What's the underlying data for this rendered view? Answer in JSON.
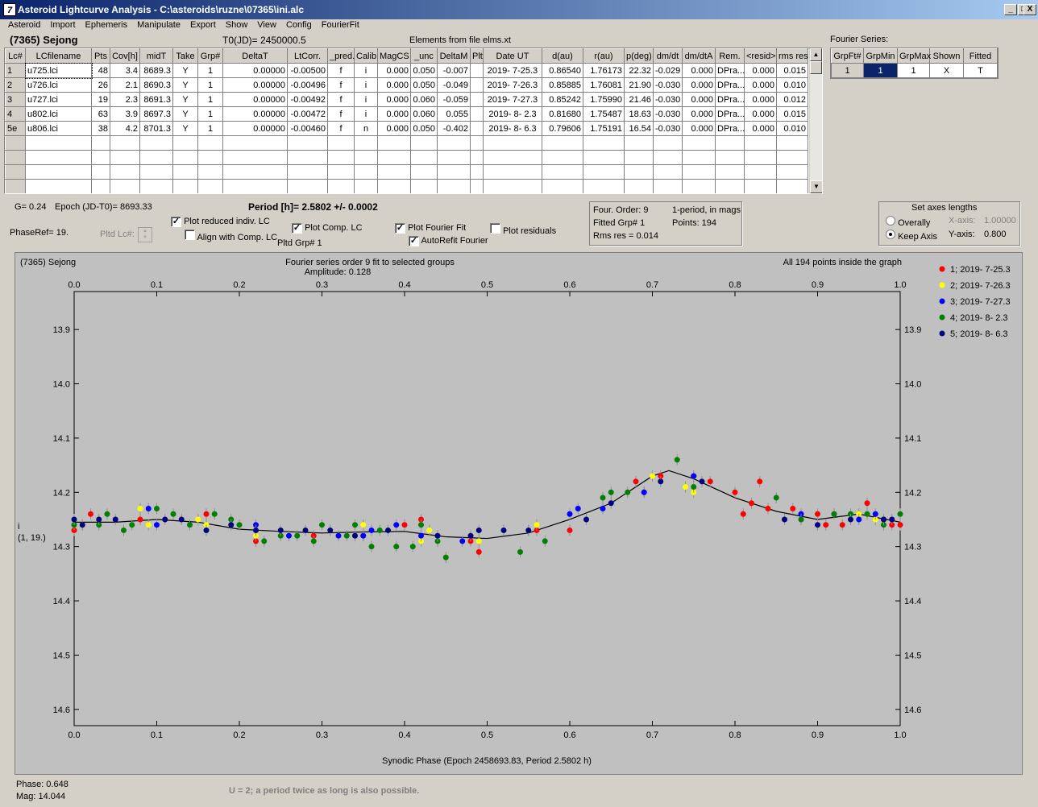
{
  "window": {
    "title": "Asteroid Lightcurve Analysis - C:\\asteroids\\ruzne\\07365\\ini.alc",
    "icon_text": "7",
    "min_glyph": "_",
    "max_glyph": "□",
    "close_glyph": "X"
  },
  "menu": [
    "Asteroid",
    "Import",
    "Ephemeris",
    "Manipulate",
    "Export",
    "Show",
    "View",
    "Config",
    "FourierFit"
  ],
  "header": {
    "asteroid_name": "(7365) Sejong",
    "t0": "T0(JD)= 2450000.5",
    "elements": "Elements from file elms.xt"
  },
  "lc_table": {
    "columns": [
      "Lc#",
      "LCfilename",
      "Pts",
      "Cov[h]",
      "midT",
      "Take",
      "Grp#",
      "DeltaT",
      "LtCorr.",
      "_pred.",
      "Calib",
      "MagCS",
      "_unc",
      "DeltaM",
      "Plt",
      "Date UT",
      "d(au)",
      "r(au)",
      "p(deg)",
      "dm/dt",
      "dm/dtA",
      "Rem.",
      "<resid>",
      "rms res"
    ],
    "rows": [
      [
        "1",
        "u725.lci",
        "48",
        "3.4",
        "8689.3",
        "Y",
        "1",
        "0.00000",
        "-0.00500",
        "f",
        "i",
        "0.000",
        "0.050",
        "-0.007",
        "",
        "2019- 7-25.3",
        "0.86540",
        "1.76173",
        "22.32",
        "-0.029",
        "0.000",
        "DPra...",
        "0.000",
        "0.015"
      ],
      [
        "2",
        "u726.lci",
        "26",
        "2.1",
        "8690.3",
        "Y",
        "1",
        "0.00000",
        "-0.00496",
        "f",
        "i",
        "0.000",
        "0.050",
        "-0.049",
        "",
        "2019- 7-26.3",
        "0.85885",
        "1.76081",
        "21.90",
        "-0.030",
        "0.000",
        "DPra...",
        "0.000",
        "0.010"
      ],
      [
        "3",
        "u727.lci",
        "19",
        "2.3",
        "8691.3",
        "Y",
        "1",
        "0.00000",
        "-0.00492",
        "f",
        "i",
        "0.000",
        "0.060",
        "-0.059",
        "",
        "2019- 7-27.3",
        "0.85242",
        "1.75990",
        "21.46",
        "-0.030",
        "0.000",
        "DPra...",
        "0.000",
        "0.012"
      ],
      [
        "4",
        "u802.lci",
        "63",
        "3.9",
        "8697.3",
        "Y",
        "1",
        "0.00000",
        "-0.00472",
        "f",
        "i",
        "0.000",
        "0.060",
        "0.055",
        "",
        "2019- 8- 2.3",
        "0.81680",
        "1.75487",
        "18.63",
        "-0.030",
        "0.000",
        "DPra...",
        "0.000",
        "0.015"
      ],
      [
        "5e",
        "u806.lci",
        "38",
        "4.2",
        "8701.3",
        "Y",
        "1",
        "0.00000",
        "-0.00460",
        "f",
        "n",
        "0.000",
        "0.050",
        "-0.402",
        "",
        "2019- 8- 6.3",
        "0.79606",
        "1.75191",
        "16.54",
        "-0.030",
        "0.000",
        "DPra...",
        "0.000",
        "0.010"
      ]
    ],
    "empty_rows": 4
  },
  "fourier_series": {
    "label": "Fourier Series:",
    "columns": [
      "GrpFt#",
      "GrpMin",
      "GrpMax",
      "Shown",
      "Fitted"
    ],
    "row": [
      "1",
      "1",
      "1",
      "X",
      "T"
    ]
  },
  "controls": {
    "g_value": "G= 0.24",
    "epoch": "Epoch (JD-T0)= 8693.33",
    "period": "Period [h]= 2.5802 +/- 0.0002",
    "phaseref": "PhaseRef= 19.",
    "pltd_lc": "Pltd Lc#:",
    "plot_reduced": "Plot reduced indiv. LC",
    "align_comp": "Align with Comp. LC",
    "plot_comp": "Plot Comp. LC",
    "pltd_grp": "Pltd Grp#  1",
    "plot_fourier": "Plot Fourier Fit",
    "autorefit": "AutoRefit Fourier",
    "plot_residuals": "Plot residuals",
    "check_glyph": "✓"
  },
  "fit_info": {
    "order": "Four. Order:  9",
    "one_period": "1-period, in mags",
    "fitted_grp": "Fitted Grp# 1",
    "points": "Points: 194",
    "rms": "Rms res      = 0.014"
  },
  "axes_box": {
    "title": "Set axes lengths",
    "overally": "Overally",
    "keep_axis": "Keep Axis",
    "x_label": "X-axis:",
    "x_value": "1.00000",
    "y_label": "Y-axis:",
    "y_value": "0.800"
  },
  "status": {
    "phase": "Phase:  0.648",
    "mag": "Mag:    14.044",
    "note": "U = 2; a period twice as long is also possible."
  },
  "chart_data": {
    "type": "scatter",
    "title_left": "(7365) Sejong",
    "title_center": "Fourier series order 9 fit to selected groups",
    "subtitle": "Amplitude: 0.128",
    "title_right": "All 194 points inside the graph",
    "xlabel": "Synodic Phase (Epoch 2458693.83, Period 2.5802 h)",
    "ylabel": "i",
    "ylabel2": "(1, 19.)",
    "xlim": [
      0.0,
      1.0
    ],
    "ylim": [
      13.83,
      14.63
    ],
    "y_inverted": true,
    "x_ticks": [
      "0.0",
      "0.1",
      "0.2",
      "0.3",
      "0.4",
      "0.5",
      "0.6",
      "0.7",
      "0.8",
      "0.9",
      "1.0"
    ],
    "y_ticks": [
      "13.9",
      "14.0",
      "14.1",
      "14.2",
      "14.3",
      "14.4",
      "14.5",
      "14.6"
    ],
    "legend": [
      {
        "name": "1; 2019- 7-25.3",
        "color": "#ff0000"
      },
      {
        "name": "2; 2019- 7-26.3",
        "color": "#ffff00"
      },
      {
        "name": "3; 2019- 7-27.3",
        "color": "#0000ff"
      },
      {
        "name": "4; 2019- 8- 2.3",
        "color": "#008000"
      },
      {
        "name": "5; 2019- 8- 6.3",
        "color": "#000080"
      }
    ],
    "fit_curve": [
      [
        0.0,
        14.255
      ],
      [
        0.05,
        14.255
      ],
      [
        0.1,
        14.25
      ],
      [
        0.15,
        14.255
      ],
      [
        0.2,
        14.268
      ],
      [
        0.25,
        14.272
      ],
      [
        0.3,
        14.275
      ],
      [
        0.35,
        14.273
      ],
      [
        0.4,
        14.272
      ],
      [
        0.45,
        14.282
      ],
      [
        0.5,
        14.285
      ],
      [
        0.55,
        14.275
      ],
      [
        0.6,
        14.25
      ],
      [
        0.65,
        14.22
      ],
      [
        0.7,
        14.17
      ],
      [
        0.72,
        14.16
      ],
      [
        0.75,
        14.175
      ],
      [
        0.8,
        14.21
      ],
      [
        0.85,
        14.235
      ],
      [
        0.9,
        14.25
      ],
      [
        0.95,
        14.24
      ],
      [
        1.0,
        14.255
      ]
    ],
    "series": [
      {
        "name": "1; 2019- 7-25.3",
        "color": "#ff0000",
        "points": [
          [
            0.0,
            14.27
          ],
          [
            0.02,
            14.24
          ],
          [
            0.08,
            14.25
          ],
          [
            0.16,
            14.24
          ],
          [
            0.22,
            14.29
          ],
          [
            0.29,
            14.28
          ],
          [
            0.35,
            14.28
          ],
          [
            0.4,
            14.26
          ],
          [
            0.42,
            14.25
          ],
          [
            0.48,
            14.29
          ],
          [
            0.49,
            14.31
          ],
          [
            0.56,
            14.27
          ],
          [
            0.6,
            14.27
          ],
          [
            0.68,
            14.18
          ],
          [
            0.69,
            14.2
          ],
          [
            0.71,
            14.17
          ],
          [
            0.75,
            14.17
          ],
          [
            0.77,
            14.18
          ],
          [
            0.8,
            14.2
          ],
          [
            0.81,
            14.24
          ],
          [
            0.82,
            14.22
          ],
          [
            0.83,
            14.18
          ],
          [
            0.84,
            14.23
          ],
          [
            0.87,
            14.23
          ],
          [
            0.88,
            14.25
          ],
          [
            0.9,
            14.24
          ],
          [
            0.91,
            14.26
          ],
          [
            0.93,
            14.26
          ],
          [
            0.95,
            14.24
          ],
          [
            0.96,
            14.22
          ],
          [
            0.98,
            14.25
          ],
          [
            0.99,
            14.26
          ],
          [
            1.0,
            14.26
          ]
        ]
      },
      {
        "name": "2; 2019- 7-26.3",
        "color": "#ffff00",
        "points": [
          [
            0.01,
            14.26
          ],
          [
            0.08,
            14.23
          ],
          [
            0.09,
            14.26
          ],
          [
            0.15,
            14.25
          ],
          [
            0.16,
            14.26
          ],
          [
            0.22,
            14.28
          ],
          [
            0.28,
            14.27
          ],
          [
            0.31,
            14.27
          ],
          [
            0.35,
            14.26
          ],
          [
            0.42,
            14.29
          ],
          [
            0.43,
            14.27
          ],
          [
            0.49,
            14.29
          ],
          [
            0.55,
            14.27
          ],
          [
            0.56,
            14.26
          ],
          [
            0.7,
            14.17
          ],
          [
            0.74,
            14.19
          ],
          [
            0.75,
            14.2
          ],
          [
            0.94,
            14.25
          ],
          [
            0.95,
            14.24
          ],
          [
            0.97,
            14.25
          ]
        ]
      },
      {
        "name": "3; 2019- 7-27.3",
        "color": "#0000ff",
        "points": [
          [
            0.1,
            14.26
          ],
          [
            0.09,
            14.23
          ],
          [
            0.22,
            14.26
          ],
          [
            0.26,
            14.28
          ],
          [
            0.32,
            14.28
          ],
          [
            0.35,
            14.28
          ],
          [
            0.36,
            14.27
          ],
          [
            0.39,
            14.26
          ],
          [
            0.42,
            14.28
          ],
          [
            0.47,
            14.29
          ],
          [
            0.6,
            14.24
          ],
          [
            0.61,
            14.23
          ],
          [
            0.64,
            14.23
          ],
          [
            0.69,
            14.2
          ],
          [
            0.75,
            14.17
          ],
          [
            0.88,
            14.24
          ],
          [
            0.92,
            14.24
          ],
          [
            0.95,
            14.25
          ],
          [
            0.97,
            14.24
          ]
        ]
      },
      {
        "name": "4; 2019- 8- 2.3",
        "color": "#008000",
        "points": [
          [
            0.0,
            14.26
          ],
          [
            0.03,
            14.26
          ],
          [
            0.04,
            14.24
          ],
          [
            0.06,
            14.27
          ],
          [
            0.07,
            14.26
          ],
          [
            0.1,
            14.23
          ],
          [
            0.12,
            14.24
          ],
          [
            0.14,
            14.26
          ],
          [
            0.17,
            14.24
          ],
          [
            0.19,
            14.25
          ],
          [
            0.2,
            14.26
          ],
          [
            0.23,
            14.29
          ],
          [
            0.25,
            14.28
          ],
          [
            0.27,
            14.28
          ],
          [
            0.29,
            14.29
          ],
          [
            0.3,
            14.26
          ],
          [
            0.33,
            14.28
          ],
          [
            0.34,
            14.26
          ],
          [
            0.36,
            14.3
          ],
          [
            0.37,
            14.27
          ],
          [
            0.39,
            14.3
          ],
          [
            0.41,
            14.3
          ],
          [
            0.42,
            14.26
          ],
          [
            0.44,
            14.29
          ],
          [
            0.45,
            14.32
          ],
          [
            0.54,
            14.31
          ],
          [
            0.57,
            14.29
          ],
          [
            0.64,
            14.21
          ],
          [
            0.65,
            14.2
          ],
          [
            0.67,
            14.2
          ],
          [
            0.73,
            14.14
          ],
          [
            0.75,
            14.19
          ],
          [
            0.85,
            14.21
          ],
          [
            0.88,
            14.25
          ],
          [
            0.92,
            14.24
          ],
          [
            0.94,
            14.24
          ],
          [
            0.96,
            14.24
          ],
          [
            0.98,
            14.26
          ],
          [
            1.0,
            14.24
          ]
        ]
      },
      {
        "name": "5; 2019- 8- 6.3",
        "color": "#000080",
        "points": [
          [
            0.0,
            14.25
          ],
          [
            0.01,
            14.26
          ],
          [
            0.03,
            14.25
          ],
          [
            0.05,
            14.25
          ],
          [
            0.11,
            14.25
          ],
          [
            0.13,
            14.25
          ],
          [
            0.16,
            14.27
          ],
          [
            0.19,
            14.26
          ],
          [
            0.22,
            14.27
          ],
          [
            0.25,
            14.27
          ],
          [
            0.28,
            14.27
          ],
          [
            0.31,
            14.27
          ],
          [
            0.34,
            14.28
          ],
          [
            0.38,
            14.27
          ],
          [
            0.44,
            14.28
          ],
          [
            0.48,
            14.28
          ],
          [
            0.49,
            14.27
          ],
          [
            0.52,
            14.27
          ],
          [
            0.55,
            14.27
          ],
          [
            0.62,
            14.25
          ],
          [
            0.65,
            14.22
          ],
          [
            0.71,
            14.18
          ],
          [
            0.76,
            14.18
          ],
          [
            0.86,
            14.25
          ],
          [
            0.9,
            14.26
          ],
          [
            0.94,
            14.25
          ],
          [
            0.98,
            14.25
          ],
          [
            0.99,
            14.25
          ]
        ]
      }
    ]
  }
}
